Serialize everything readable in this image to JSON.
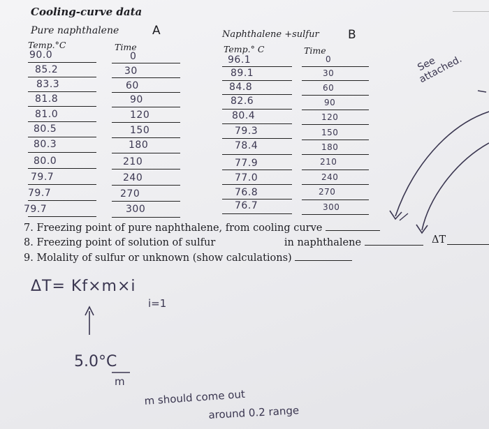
{
  "header": {
    "title": "Cooling-curve data",
    "part_a": {
      "heading": "Pure naphthalene",
      "letter": "A",
      "temp_label": "Temp.°C",
      "time_label": "Time"
    },
    "part_b": {
      "heading": "Naphthalene +sulfur",
      "letter": "B",
      "temp_label": "Temp.° C",
      "time_label": "Time"
    }
  },
  "table_a": {
    "temps": [
      "90.0",
      "85.2",
      "83.3",
      "81.8",
      "81.0",
      "80.5",
      "80.3",
      "80.0",
      "79.7",
      "79.7",
      "79.7"
    ],
    "times": [
      "0",
      "30",
      "60",
      "90",
      "120",
      "150",
      "180",
      "210",
      "240",
      "270",
      "300"
    ]
  },
  "table_b": {
    "temps": [
      "96.1",
      "89.1",
      "84.8",
      "82.6",
      "80.4",
      "79.3",
      "78.4",
      "77.9",
      "77.0",
      "76.8",
      "76.7"
    ],
    "times": [
      "0",
      "30",
      "60",
      "90",
      "120",
      "150",
      "180",
      "210",
      "240",
      "270",
      "300"
    ]
  },
  "questions": {
    "q7": "7. Freezing point of pure naphthalene, from cooling curve",
    "q8a": "8. Freezing point of solution of sulfur",
    "q8b": "in naphthalene",
    "q8_delta": "ΔT",
    "q9": "9. Molality of sulfur or unknown (show calculations)"
  },
  "annotations": {
    "see_attached_1": "See",
    "see_attached_2": "attached.",
    "formula": "ΔT= Kf×m×i",
    "i_value": "i=1",
    "arrow_up": "↑",
    "kf_value": "5.0°C",
    "kf_unit": "m",
    "note_1": "m should come out",
    "note_2": "around 0.2 range"
  }
}
